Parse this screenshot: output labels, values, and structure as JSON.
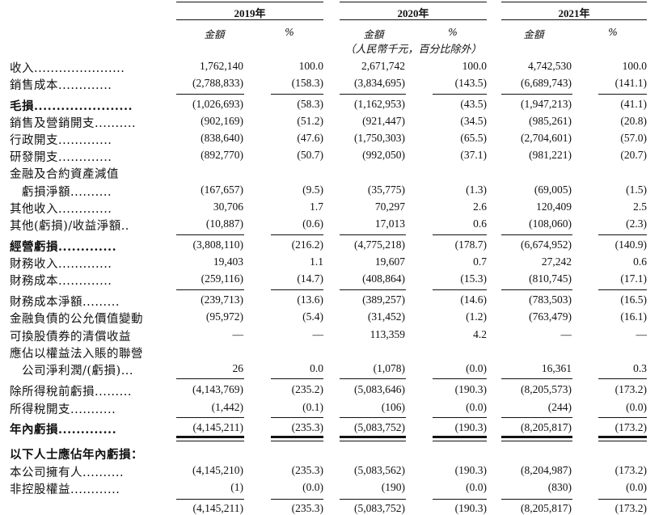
{
  "header": {
    "years": [
      "2019年",
      "2020年",
      "2021年"
    ],
    "amount_label": "金額",
    "pct_label": "%",
    "unit_note": "（人民幣千元，百分比除外）"
  },
  "rows": [
    {
      "label": "收入",
      "dots": "......................",
      "bold": false,
      "v": [
        "1,762,140",
        "100.0",
        "2,671,742",
        "100.0",
        "4,742,530",
        "100.0"
      ]
    },
    {
      "label": "銷售成本",
      "dots": ".............",
      "bold": false,
      "v": [
        "(2,788,833)",
        "(158.3)",
        "(3,834,695)",
        "(143.5)",
        "(6,689,743)",
        "(141.1)"
      ]
    },
    {
      "label": "毛損",
      "dots": "......................",
      "bold": true,
      "v": [
        "(1,026,693)",
        "(58.3)",
        "(1,162,953)",
        "(43.5)",
        "(1,947,213)",
        "(41.1)"
      ]
    },
    {
      "label": "銷售及營銷開支",
      "dots": "..........",
      "bold": false,
      "v": [
        "(902,169)",
        "(51.2)",
        "(921,447)",
        "(34.5)",
        "(985,261)",
        "(20.8)"
      ]
    },
    {
      "label": "行政開支",
      "dots": ".............",
      "bold": false,
      "v": [
        "(838,640)",
        "(47.6)",
        "(1,750,303)",
        "(65.5)",
        "(2,704,601)",
        "(57.0)"
      ]
    },
    {
      "label": "研發開支",
      "dots": ".............",
      "bold": false,
      "v": [
        "(892,770)",
        "(50.7)",
        "(992,050)",
        "(37.1)",
        "(981,221)",
        "(20.7)"
      ]
    },
    {
      "label": "金融及合約資產減值",
      "dots": "",
      "bold": false,
      "v": [
        "",
        "",
        "",
        "",
        "",
        ""
      ]
    },
    {
      "label": "　虧損淨額",
      "dots": "..........",
      "bold": false,
      "v": [
        "(167,657)",
        "(9.5)",
        "(35,775)",
        "(1.3)",
        "(69,005)",
        "(1.5)"
      ]
    },
    {
      "label": "其他收入",
      "dots": ".............",
      "bold": false,
      "v": [
        "30,706",
        "1.7",
        "70,297",
        "2.6",
        "120,409",
        "2.5"
      ]
    },
    {
      "label": "其他(虧損)/收益淨額",
      "dots": "..",
      "bold": false,
      "v": [
        "(10,887)",
        "(0.6)",
        "17,013",
        "0.6",
        "(108,060)",
        "(2.3)"
      ]
    },
    {
      "label": "經營虧損",
      "dots": ".............",
      "bold": true,
      "v": [
        "(3,808,110)",
        "(216.2)",
        "(4,775,218)",
        "(178.7)",
        "(6,674,952)",
        "(140.9)"
      ]
    },
    {
      "label": "財務收入",
      "dots": ".............",
      "bold": false,
      "v": [
        "19,403",
        "1.1",
        "19,607",
        "0.7",
        "27,242",
        "0.6"
      ]
    },
    {
      "label": "財務成本",
      "dots": ".............",
      "bold": false,
      "v": [
        "(259,116)",
        "(14.7)",
        "(408,864)",
        "(15.3)",
        "(810,745)",
        "(17.1)"
      ]
    },
    {
      "label": "財務成本淨額",
      "dots": ".........",
      "bold": false,
      "v": [
        "(239,713)",
        "(13.6)",
        "(389,257)",
        "(14.6)",
        "(783,503)",
        "(16.5)"
      ]
    },
    {
      "label": "金融負債的公允價值變動",
      "dots": "",
      "bold": false,
      "v": [
        "(95,972)",
        "(5.4)",
        "(31,452)",
        "(1.2)",
        "(763,479)",
        "(16.1)"
      ]
    },
    {
      "label": "可換股債券的清償收益",
      "dots": "",
      "bold": false,
      "v": [
        "—",
        "—",
        "113,359",
        "4.2",
        "—",
        "—"
      ]
    },
    {
      "label": "應佔以權益法入賬的聯營",
      "dots": "",
      "bold": false,
      "v": [
        "",
        "",
        "",
        "",
        "",
        ""
      ]
    },
    {
      "label": "　公司淨利潤/(虧損)",
      "dots": "...",
      "bold": false,
      "v": [
        "26",
        "0.0",
        "(1,078)",
        "(0.0)",
        "16,361",
        "0.3"
      ]
    },
    {
      "label": "除所得稅前虧損",
      "dots": ".........",
      "bold": false,
      "v": [
        "(4,143,769)",
        "(235.2)",
        "(5,083,646)",
        "(190.3)",
        "(8,205,573)",
        "(173.2)"
      ]
    },
    {
      "label": "所得稅開支",
      "dots": "...........",
      "bold": false,
      "v": [
        "(1,442)",
        "(0.1)",
        "(106)",
        "(0.0)",
        "(244)",
        "(0.0)"
      ]
    },
    {
      "label": "年內虧損",
      "dots": ".............",
      "bold": true,
      "v": [
        "(4,145,211)",
        "(235.3)",
        "(5,083,752)",
        "(190.3)",
        "(8,205,817)",
        "(173.2)"
      ]
    },
    {
      "label": "以下人士應佔年內虧損：",
      "dots": "",
      "bold": true,
      "v": [
        "",
        "",
        "",
        "",
        "",
        ""
      ]
    },
    {
      "label": "本公司擁有人",
      "dots": "..........",
      "bold": false,
      "v": [
        "(4,145,210)",
        "(235.3)",
        "(5,083,562)",
        "(190.3)",
        "(8,204,987)",
        "(173.2)"
      ]
    },
    {
      "label": "非控股權益",
      "dots": "............",
      "bold": false,
      "v": [
        "(1)",
        "(0.0)",
        "(190)",
        "(0.0)",
        "(830)",
        "(0.0)"
      ]
    },
    {
      "label": "",
      "dots": "",
      "bold": false,
      "v": [
        "(4,145,211)",
        "(235.3)",
        "(5,083,752)",
        "(190.3)",
        "(8,205,817)",
        "(173.2)"
      ]
    }
  ]
}
